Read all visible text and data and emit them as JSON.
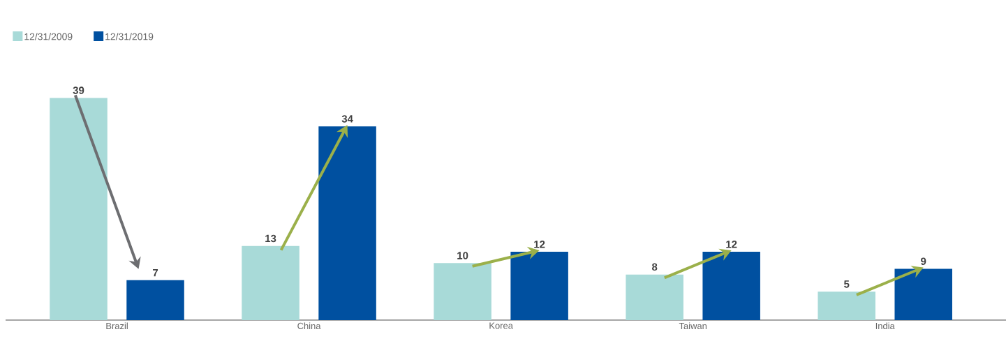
{
  "chart_data": {
    "type": "bar",
    "categories": [
      "Brazil",
      "China",
      "Korea",
      "Taiwan",
      "India"
    ],
    "series": [
      {
        "name": "12/31/2009",
        "color": "#a8dad8",
        "values": [
          39,
          13,
          10,
          8,
          5
        ]
      },
      {
        "name": "12/31/2019",
        "color": "#0050a0",
        "values": [
          7,
          34,
          12,
          12,
          9
        ]
      }
    ],
    "data_labels": true,
    "legend": "top left"
  }
}
